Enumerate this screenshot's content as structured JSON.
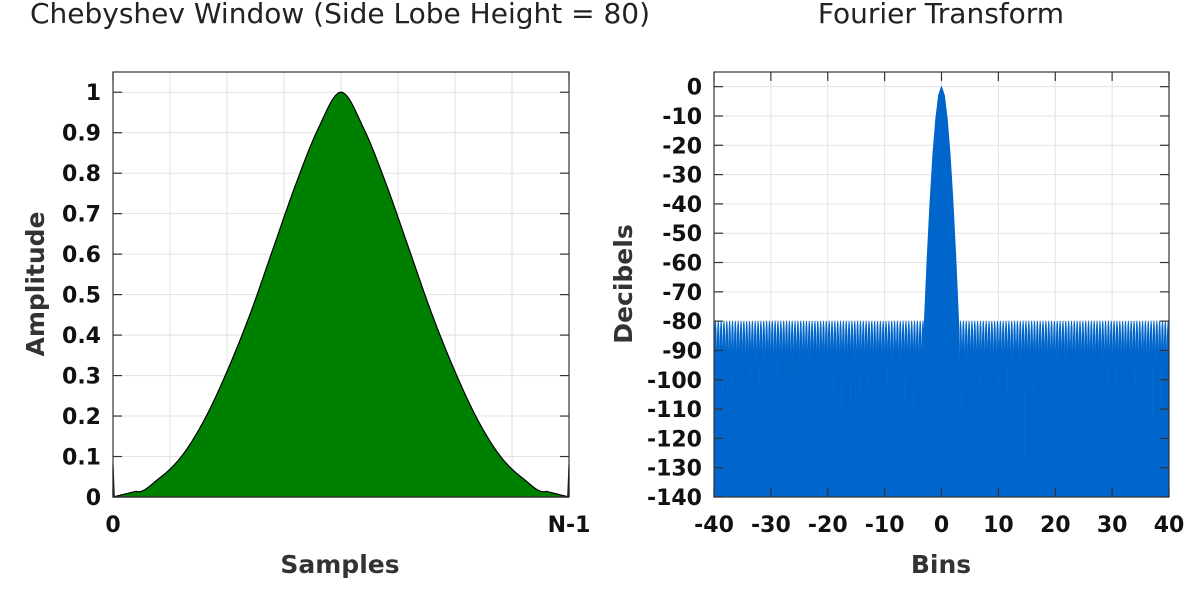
{
  "chart_data": [
    {
      "type": "area",
      "title": "Chebyshev Window (Side Lobe Height = 80)",
      "xlabel": "Samples",
      "ylabel": "Amplitude",
      "xlim": [
        0,
        1
      ],
      "ylim": [
        0,
        1.05
      ],
      "x_ticks": [
        "0",
        "N-1"
      ],
      "y_ticks": [
        "0",
        "0.1",
        "0.2",
        "0.3",
        "0.4",
        "0.5",
        "0.6",
        "0.7",
        "0.8",
        "0.9",
        "1"
      ],
      "y_tick_values": [
        0,
        0.1,
        0.2,
        0.3,
        0.4,
        0.5,
        0.6,
        0.7,
        0.8,
        0.9,
        1
      ],
      "x": [
        0,
        0.05,
        0.1,
        0.15,
        0.2,
        0.25,
        0.3,
        0.35,
        0.4,
        0.45,
        0.5,
        0.55,
        0.6,
        0.65,
        0.7,
        0.75,
        0.8,
        0.85,
        0.9,
        0.95,
        1
      ],
      "y": [
        0.08,
        0.014,
        0.045,
        0.1,
        0.19,
        0.31,
        0.45,
        0.61,
        0.77,
        0.91,
        1.0,
        0.91,
        0.77,
        0.61,
        0.45,
        0.31,
        0.19,
        0.1,
        0.045,
        0.014,
        0.08
      ],
      "fill_color": "#008000",
      "grid": true
    },
    {
      "type": "line",
      "title": "Fourier Transform",
      "xlabel": "Bins",
      "ylabel": "Decibels",
      "xlim": [
        -40,
        40
      ],
      "ylim": [
        -140,
        5
      ],
      "x_ticks": [
        "-40",
        "-30",
        "-20",
        "-10",
        "0",
        "10",
        "20",
        "30",
        "40"
      ],
      "x_tick_values": [
        -40,
        -30,
        -20,
        -10,
        0,
        10,
        20,
        30,
        40
      ],
      "y_ticks": [
        "0",
        "-10",
        "-20",
        "-30",
        "-40",
        "-50",
        "-60",
        "-70",
        "-80",
        "-90",
        "-100",
        "-110",
        "-120",
        "-130",
        "-140"
      ],
      "y_tick_values": [
        0,
        -10,
        -20,
        -30,
        -40,
        -50,
        -60,
        -70,
        -80,
        -90,
        -100,
        -110,
        -120,
        -130,
        -140
      ],
      "main_lobe": {
        "x": [
          -3.1,
          -3.0,
          -2.5,
          -2.0,
          -1.5,
          -1.0,
          -0.5,
          0,
          0.5,
          1.0,
          1.5,
          2.0,
          2.5,
          3.0,
          3.1
        ],
        "y": [
          -140,
          -80,
          -58,
          -39,
          -23,
          -11,
          -3,
          0,
          -3,
          -11,
          -23,
          -39,
          -58,
          -80,
          -140
        ]
      },
      "side_lobe_level_db": -80,
      "side_lobe_floor_db": -140,
      "side_lobe_spacing_bins": 0.5,
      "line_color": "#0066cc",
      "grid": true
    }
  ]
}
